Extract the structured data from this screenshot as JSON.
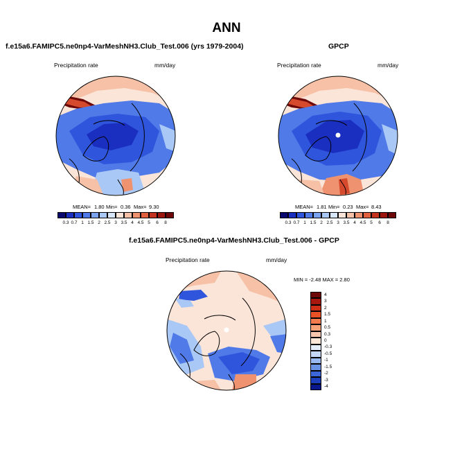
{
  "title": "ANN",
  "panels": {
    "model": {
      "title": "f.e15a6.FAMIPC5.ne0np4-VarMeshNH3.Club_Test.006 (yrs 1979-2004)",
      "left_label": "Precipitation rate",
      "right_label": "mm/day",
      "mean_label": "MEAN=",
      "mean": "1.80",
      "min_label": "Min=",
      "min": "0.36",
      "max_label": "Max=",
      "max": "9.30"
    },
    "obs": {
      "title": "GPCP",
      "left_label": "Precipitation rate",
      "right_label": "mm/day",
      "mean_label": "MEAN=",
      "mean": "1.81",
      "min_label": "Min=",
      "min": "0.23",
      "max_label": "Max=",
      "max": "8.43"
    },
    "diff": {
      "title": "f.e15a6.FAMIPC5.ne0np4-VarMeshNH3.Club_Test.006 - GPCP",
      "left_label": "Precipitation rate",
      "right_label": "mm/day",
      "minmax_text": "MIN = -2.48 MAX = 2.80"
    }
  },
  "colorbar_abs": {
    "colors": [
      "#08086e",
      "#1a2fc0",
      "#2f55dc",
      "#4f7ae8",
      "#7ba3f0",
      "#aac8f6",
      "#d8e6f9",
      "#fbe5d8",
      "#f6c1a6",
      "#ef9270",
      "#e0603f",
      "#c43320",
      "#9c1610",
      "#6e0808"
    ],
    "labels": [
      "0.3",
      "0.7",
      "1",
      "1.5",
      "2",
      "2.5",
      "3",
      "3.5",
      "4",
      "4.5",
      "5",
      "6",
      "8"
    ]
  },
  "colorbar_diff": {
    "colors": [
      "#6e0808",
      "#a5170f",
      "#cf2f17",
      "#ea5127",
      "#f57a4e",
      "#f7a179",
      "#f9c7ab",
      "#fbe6d7",
      "#e4eefb",
      "#c3d8f6",
      "#98b9f0",
      "#6a93e6",
      "#3d67d8",
      "#1d3ebb",
      "#0a168c"
    ],
    "labels": [
      "4",
      "3",
      "2",
      "1.5",
      "1",
      "0.5",
      "0.3",
      "0",
      "-0.3",
      "-0.5",
      "-1",
      "-1.5",
      "-2",
      "-3",
      "-4"
    ]
  },
  "map_colors": {
    "very_wet": "#6e0808",
    "wet_red": "#d54a2c",
    "wet": "#ef9270",
    "warm": "#f6c1a6",
    "neutral": "#fbe5d8",
    "pale_blue": "#d8e6f9",
    "light_blue": "#aac8f6",
    "mid_blue": "#4f7ae8",
    "blue": "#2f55dc",
    "dark_blue": "#1a2fc0",
    "coast": "#000000"
  }
}
